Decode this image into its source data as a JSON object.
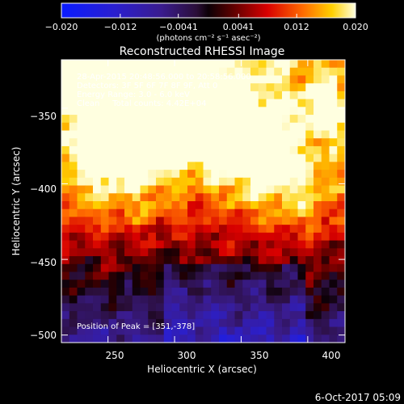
{
  "colorbar": {
    "tick_labels": [
      "−0.020",
      "−0.012",
      "−0.0041",
      "0.0041",
      "0.012",
      "0.020"
    ],
    "tick_values": [
      -0.02,
      -0.012,
      -0.0041,
      0.0041,
      0.012,
      0.02
    ],
    "range": [
      -0.02,
      0.02
    ],
    "units_label": "(photons cm⁻² s⁻¹ asec⁻²)"
  },
  "plot": {
    "title": "Reconstructed RHESSI Image",
    "xlabel": "Heliocentric X (arcsec)",
    "ylabel": "Heliocentric Y (arcsec)",
    "xlim": [
      215,
      428
    ],
    "ylim": [
      -505,
      -318
    ],
    "x_ticks": [
      "250",
      "300",
      "350",
      "400"
    ],
    "x_tick_values": [
      250,
      300,
      350,
      400
    ],
    "y_ticks": [
      "−350",
      "−400",
      "−450",
      "−500"
    ],
    "y_tick_values": [
      -350,
      -400,
      -450,
      -500
    ]
  },
  "annotations": {
    "time_range": "28-Apr-2015 20:48:56.000 to 20:58:56.000",
    "detectors": "Detectors: 3F 5F 6F 7F 8F 9F, Att 0",
    "energy_range": "Energy Range: 3.0 - 6.0 keV",
    "clean_counts": "Clean     Total counts: 4.42E+04",
    "peak_position": "Position of Peak = [351,-378]"
  },
  "footer": {
    "date": "6-Oct-2017 05:09"
  },
  "colors": {
    "background": "#000000",
    "text": "#ffffff"
  }
}
